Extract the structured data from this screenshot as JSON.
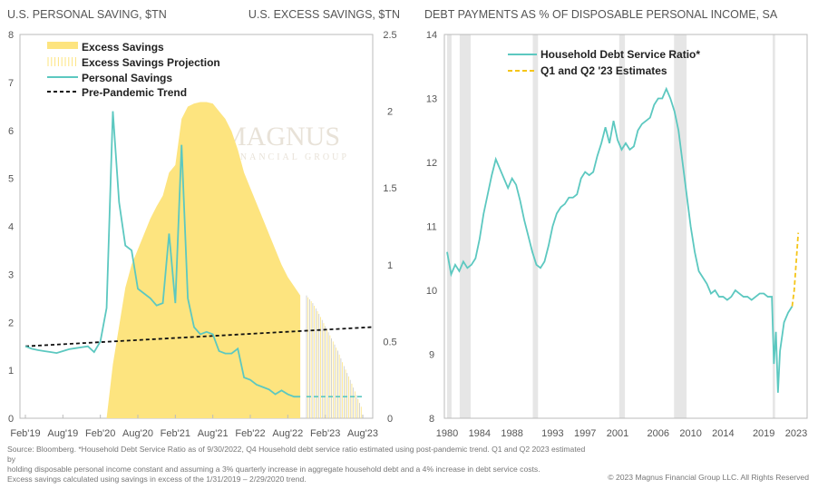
{
  "watermark": {
    "logo_text": "MAGNUS",
    "sub_text": "FINANCIAL GROUP"
  },
  "chart_data": [
    {
      "type": "area+line",
      "title_left": "U.S. PERSONAL SAVING, $TN",
      "title_right": "U.S. EXCESS SAVINGS, $TN",
      "y_left": {
        "range": [
          0,
          8
        ],
        "ticks": [
          "0",
          "1",
          "2",
          "3",
          "4",
          "5",
          "6",
          "7",
          "8"
        ]
      },
      "y_right": {
        "range": [
          0,
          2.5
        ],
        "ticks": [
          "0",
          "0.5",
          "1",
          "1.5",
          "2",
          "2.5"
        ]
      },
      "x_ticks": [
        "Feb'19",
        "Aug'19",
        "Feb'20",
        "Aug'20",
        "Feb'21",
        "Aug'21",
        "Feb'22",
        "Aug'22",
        "Feb'23",
        "Aug'23"
      ],
      "x_start": "2019-02",
      "x_end": "2023-08",
      "grid": false,
      "legend": "top-left",
      "legend_items": [
        "Excess Savings",
        "Excess Savings Projection",
        "Personal Savings",
        "Pre-Pandemic Trend"
      ],
      "colors": {
        "excess": "#fde47f",
        "personal": "#5cc8c0",
        "trend": "#111111"
      },
      "personal_savings": {
        "start": "2019-02",
        "values": [
          1.5,
          1.45,
          1.42,
          1.4,
          1.38,
          1.36,
          1.4,
          1.44,
          1.46,
          1.48,
          1.5,
          1.38,
          1.6,
          2.3,
          6.4,
          4.5,
          3.6,
          3.5,
          2.7,
          2.6,
          2.5,
          2.35,
          2.4,
          3.85,
          2.4,
          5.7,
          2.5,
          1.9,
          1.75,
          1.8,
          1.75,
          1.4,
          1.35,
          1.35,
          1.45,
          0.85,
          0.8,
          0.7,
          0.65,
          0.6,
          0.5,
          0.58,
          0.5,
          0.45,
          0.45
        ]
      },
      "personal_savings_projection": {
        "start": "2022-11",
        "values": [
          0.45,
          0.45,
          0.45,
          0.45,
          0.45,
          0.45,
          0.45,
          0.45,
          0.45,
          0.45
        ]
      },
      "excess_savings": {
        "start": "2020-03",
        "values": [
          0,
          0.35,
          0.6,
          0.85,
          1.0,
          1.1,
          1.2,
          1.3,
          1.38,
          1.45,
          1.6,
          1.65,
          1.95,
          2.03,
          2.05,
          2.06,
          2.06,
          2.05,
          2.0,
          1.95,
          1.87,
          1.75,
          1.6,
          1.5,
          1.4,
          1.3,
          1.2,
          1.1,
          1.0,
          0.92,
          0.86,
          0.8
        ]
      },
      "excess_savings_projection": {
        "start": "2022-11",
        "values": [
          0.8,
          0.75,
          0.68,
          0.6,
          0.52,
          0.44,
          0.34,
          0.25,
          0.15,
          0.05
        ]
      },
      "pre_pandemic_trend": {
        "start": "2019-02",
        "end": "2023-08",
        "values": [
          1.5,
          1.9
        ]
      }
    },
    {
      "type": "line",
      "title": "DEBT PAYMENTS AS % OF DISPOSABLE PERSONAL INCOME, SA",
      "y": {
        "range": [
          8,
          14
        ],
        "ticks": [
          "8",
          "9",
          "10",
          "11",
          "12",
          "13",
          "14"
        ]
      },
      "x_range": [
        1980,
        2023.5
      ],
      "x_ticks": [
        "1980",
        "1984",
        "1988",
        "1993",
        "1997",
        "2001",
        "2006",
        "2010",
        "2014",
        "2019",
        "2023"
      ],
      "legend": "top-left",
      "legend_items": [
        "Household Debt Service Ratio*",
        "Q1 and Q2 '23 Estimates"
      ],
      "colors": {
        "ratio": "#5cc8c0",
        "estimate": "#f5c518",
        "recession": "#e6e6e6"
      },
      "recessions": [
        [
          1980.0,
          1980.55
        ],
        [
          1981.55,
          1982.9
        ],
        [
          1990.55,
          1991.2
        ],
        [
          2001.2,
          2001.9
        ],
        [
          2007.95,
          2009.5
        ],
        [
          2020.1,
          2020.4
        ]
      ],
      "series": [
        [
          1980,
          10.6
        ],
        [
          1980.5,
          10.25
        ],
        [
          1981,
          10.4
        ],
        [
          1981.5,
          10.3
        ],
        [
          1982,
          10.45
        ],
        [
          1982.5,
          10.35
        ],
        [
          1983,
          10.4
        ],
        [
          1983.5,
          10.5
        ],
        [
          1984,
          10.8
        ],
        [
          1984.5,
          11.2
        ],
        [
          1985,
          11.5
        ],
        [
          1985.5,
          11.8
        ],
        [
          1986,
          12.05
        ],
        [
          1986.5,
          11.9
        ],
        [
          1987,
          11.75
        ],
        [
          1987.5,
          11.6
        ],
        [
          1988,
          11.75
        ],
        [
          1988.5,
          11.65
        ],
        [
          1989,
          11.4
        ],
        [
          1989.5,
          11.1
        ],
        [
          1990,
          10.85
        ],
        [
          1990.5,
          10.6
        ],
        [
          1991,
          10.4
        ],
        [
          1991.5,
          10.35
        ],
        [
          1992,
          10.45
        ],
        [
          1992.5,
          10.7
        ],
        [
          1993,
          11.0
        ],
        [
          1993.5,
          11.2
        ],
        [
          1994,
          11.3
        ],
        [
          1994.5,
          11.35
        ],
        [
          1995,
          11.45
        ],
        [
          1995.5,
          11.45
        ],
        [
          1996,
          11.5
        ],
        [
          1996.5,
          11.75
        ],
        [
          1997,
          11.85
        ],
        [
          1997.5,
          11.8
        ],
        [
          1998,
          11.85
        ],
        [
          1998.5,
          12.1
        ],
        [
          1999,
          12.3
        ],
        [
          1999.5,
          12.55
        ],
        [
          2000,
          12.3
        ],
        [
          2000.5,
          12.65
        ],
        [
          2001,
          12.35
        ],
        [
          2001.5,
          12.2
        ],
        [
          2002,
          12.3
        ],
        [
          2002.5,
          12.2
        ],
        [
          2003,
          12.25
        ],
        [
          2003.5,
          12.5
        ],
        [
          2004,
          12.6
        ],
        [
          2004.5,
          12.65
        ],
        [
          2005,
          12.7
        ],
        [
          2005.5,
          12.9
        ],
        [
          2006,
          13.0
        ],
        [
          2006.5,
          13.0
        ],
        [
          2007,
          13.15
        ],
        [
          2007.5,
          13.0
        ],
        [
          2008,
          12.8
        ],
        [
          2008.5,
          12.5
        ],
        [
          2009,
          12.0
        ],
        [
          2009.5,
          11.5
        ],
        [
          2010,
          11.0
        ],
        [
          2010.5,
          10.6
        ],
        [
          2011,
          10.3
        ],
        [
          2011.5,
          10.2
        ],
        [
          2012,
          10.1
        ],
        [
          2012.5,
          9.95
        ],
        [
          2013,
          10.0
        ],
        [
          2013.5,
          9.9
        ],
        [
          2014,
          9.9
        ],
        [
          2014.5,
          9.85
        ],
        [
          2015,
          9.9
        ],
        [
          2015.5,
          10.0
        ],
        [
          2016,
          9.95
        ],
        [
          2016.5,
          9.9
        ],
        [
          2017,
          9.9
        ],
        [
          2017.5,
          9.85
        ],
        [
          2018,
          9.9
        ],
        [
          2018.5,
          9.95
        ],
        [
          2019,
          9.95
        ],
        [
          2019.5,
          9.9
        ],
        [
          2020,
          9.9
        ],
        [
          2020.25,
          8.85
        ],
        [
          2020.5,
          9.35
        ],
        [
          2020.75,
          8.4
        ],
        [
          2021,
          9.05
        ],
        [
          2021.5,
          9.5
        ],
        [
          2022,
          9.65
        ],
        [
          2022.5,
          9.75
        ]
      ],
      "estimates": [
        [
          2022.5,
          9.75
        ],
        [
          2022.75,
          10.0
        ],
        [
          2023.0,
          10.45
        ],
        [
          2023.25,
          10.9
        ]
      ]
    }
  ],
  "footer": {
    "source": [
      "Source: Bloomberg. *Household Debt Service Ratio as of 9/30/2022, Q4 Household debt service ratio estimated using post-pandemic trend. Q1 and Q2 2023 estimated by",
      "holding disposable personal income constant and assuming a 3% quarterly increase in aggregate household debt and a 4% increase in debt service costs.",
      "Excess savings calculated using savings in excess of the 1/31/2019 – 2/29/2020 trend."
    ],
    "copyright": "© 2023 Magnus Financial Group LLC. All Rights Reserved"
  }
}
